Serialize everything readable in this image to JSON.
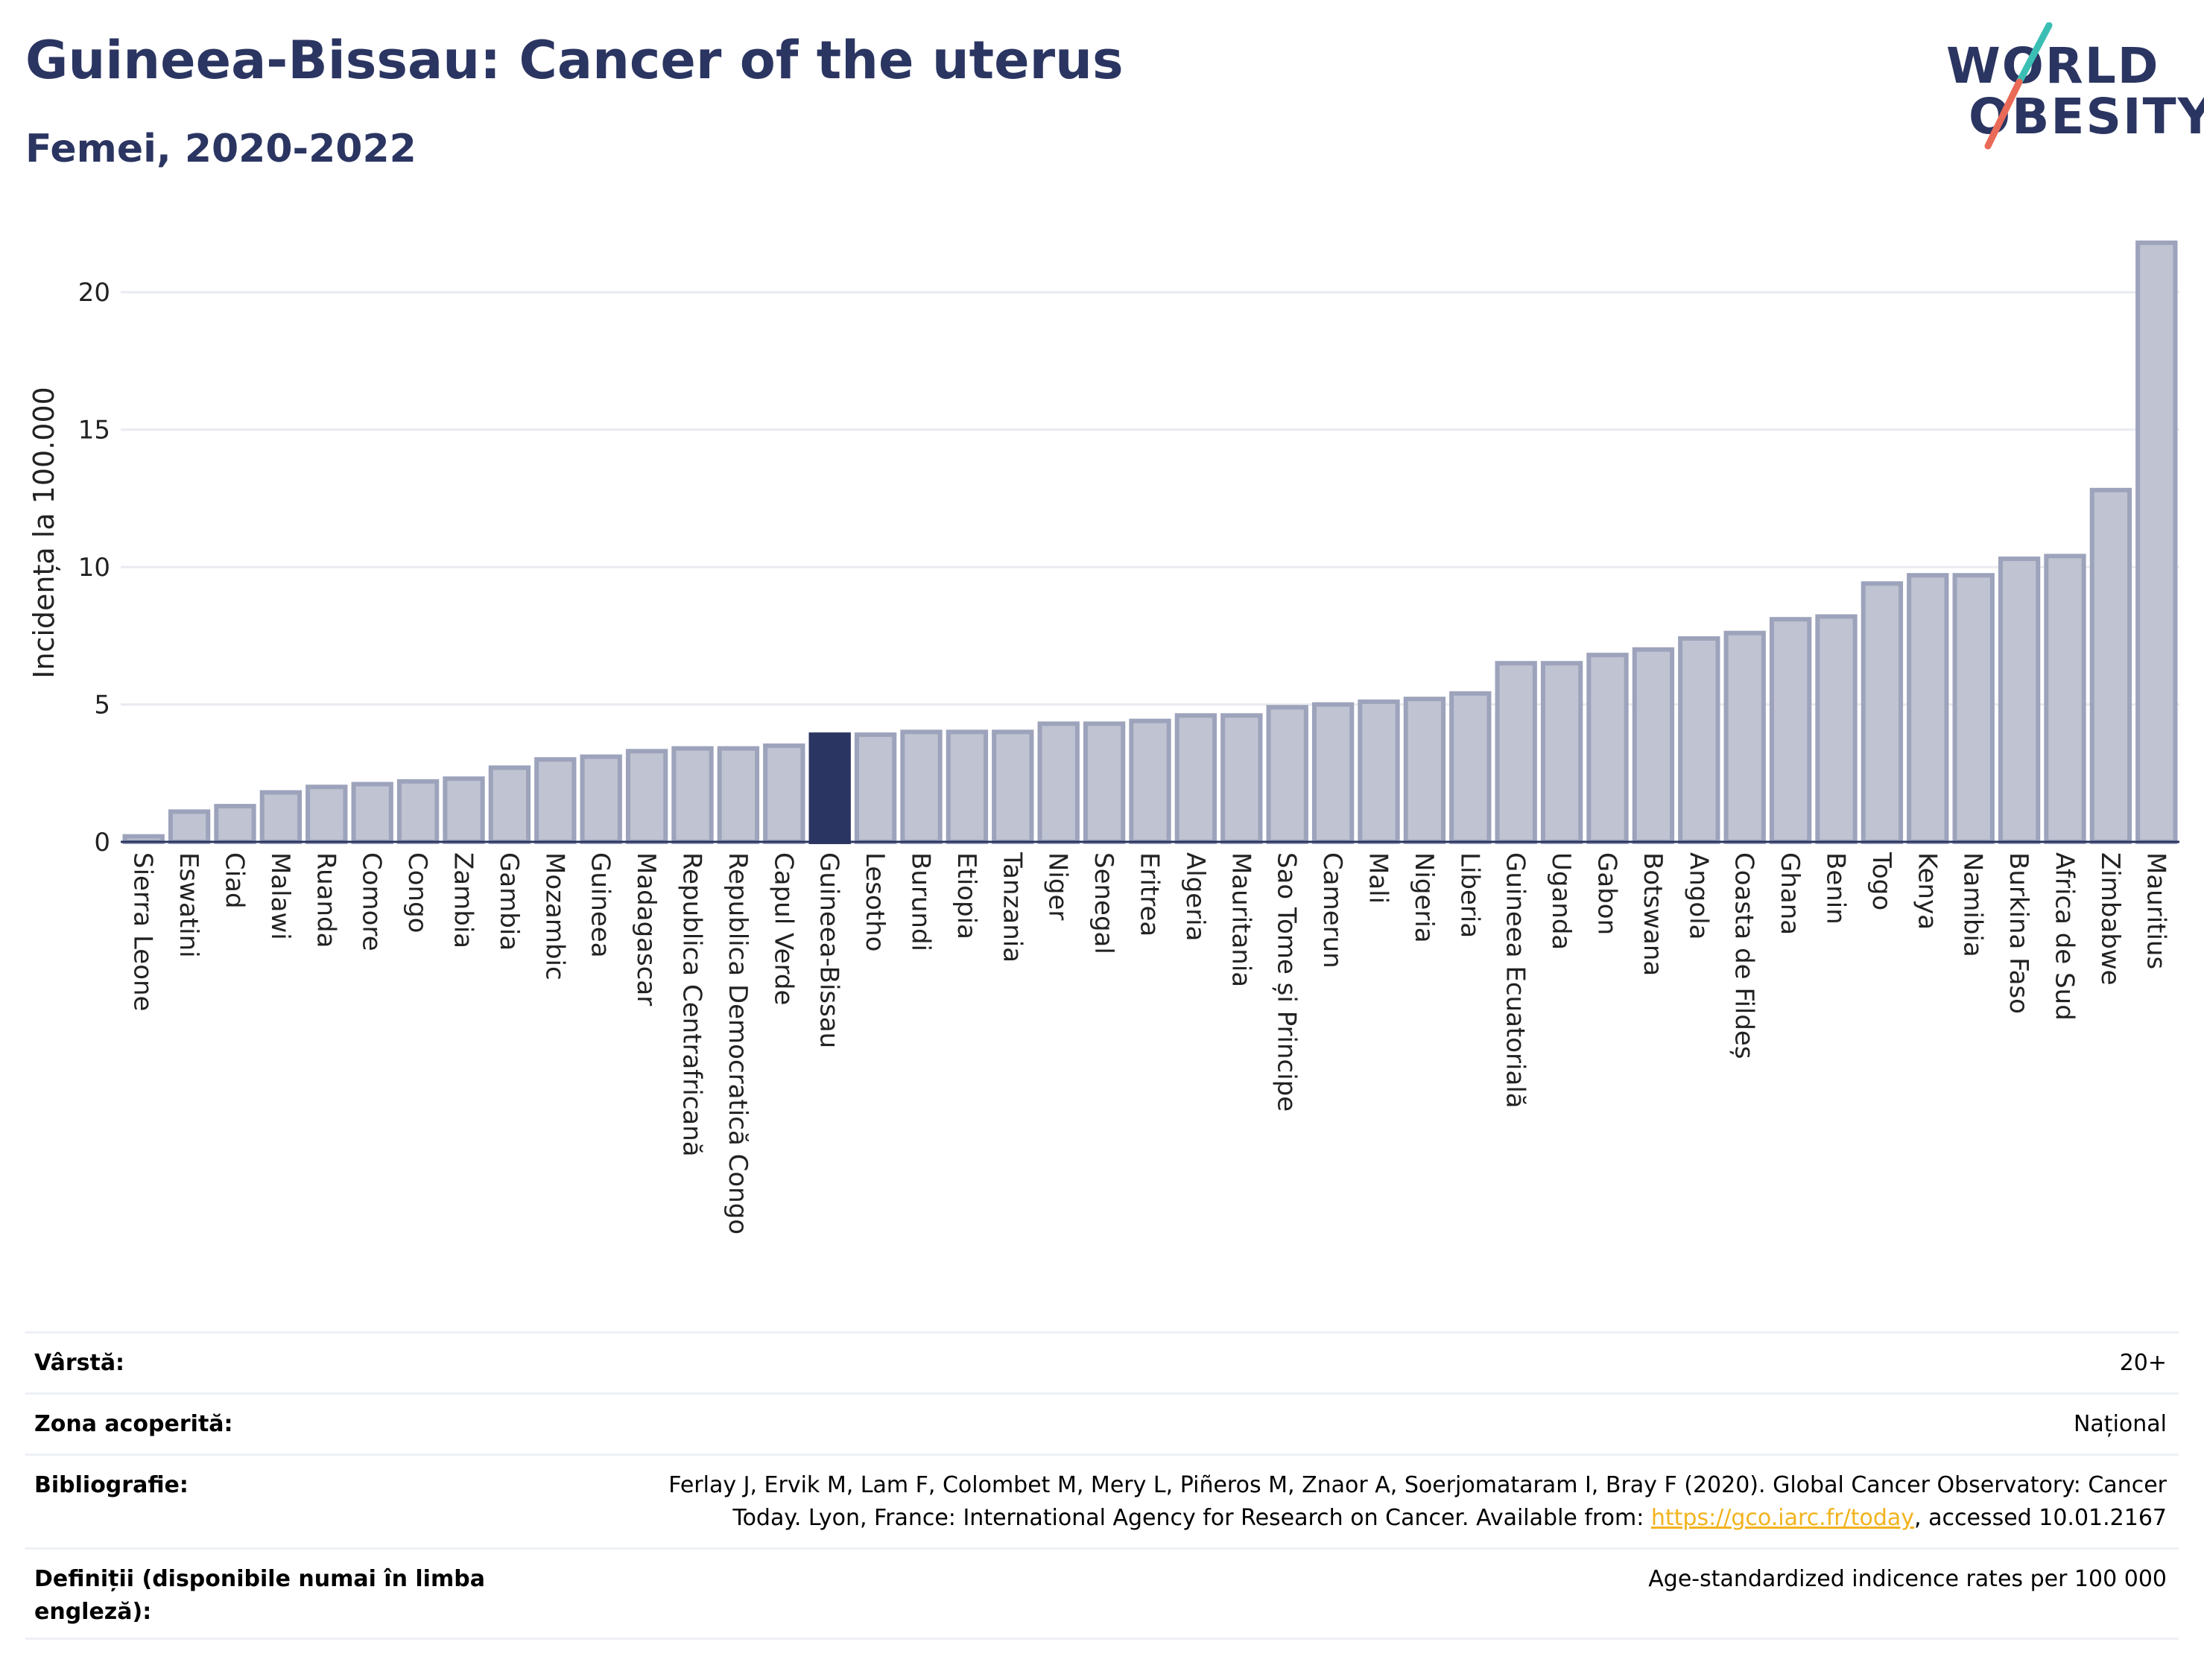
{
  "header": {
    "title": "Guineea-Bissau: Cancer of the uterus",
    "subtitle": "Femei, 2020-2022"
  },
  "logo": {
    "line1": "WORLD",
    "line2": "OBESITY",
    "colors": {
      "text": "#2b3561",
      "slash_top": "#3bbfb5",
      "slash_bottom": "#ea6a58"
    }
  },
  "colors": {
    "bar_fill": "#bfc3d2",
    "bar_stroke": "#9da3bb",
    "highlight_fill": "#2b3561",
    "axis_text": "#222222",
    "grid": "#e9ebf0"
  },
  "chart_data": {
    "type": "bar",
    "ylabel": "Incidența la 100.000",
    "ylim": [
      0,
      22.5
    ],
    "yticks": [
      0,
      5,
      10,
      15,
      20
    ],
    "grid": true,
    "highlight": "Guineea-Bissau",
    "categories": [
      "Sierra Leone",
      "Eswatini",
      "Ciad",
      "Malawi",
      "Ruanda",
      "Comore",
      "Congo",
      "Zambia",
      "Gambia",
      "Mozambic",
      "Guineea",
      "Madagascar",
      "Republica Centrafricană",
      "Republica Democratică Congo",
      "Capul Verde",
      "Guineea-Bissau",
      "Lesotho",
      "Burundi",
      "Etiopia",
      "Tanzania",
      "Niger",
      "Senegal",
      "Eritrea",
      "Algeria",
      "Mauritania",
      "Sao Tome și Principe",
      "Camerun",
      "Mali",
      "Nigeria",
      "Liberia",
      "Guineea Ecuatorială",
      "Uganda",
      "Gabon",
      "Botswana",
      "Angola",
      "Coasta de Fildeș",
      "Ghana",
      "Benin",
      "Togo",
      "Kenya",
      "Namibia",
      "Burkina Faso",
      "Africa de Sud",
      "Zimbabwe",
      "Mauritius"
    ],
    "values": [
      0.2,
      1.1,
      1.3,
      1.8,
      2.0,
      2.1,
      2.2,
      2.3,
      2.7,
      3.0,
      3.1,
      3.3,
      3.4,
      3.4,
      3.5,
      3.9,
      3.9,
      4.0,
      4.0,
      4.0,
      4.3,
      4.3,
      4.4,
      4.6,
      4.6,
      4.9,
      5.0,
      5.1,
      5.2,
      5.4,
      6.5,
      6.5,
      6.8,
      7.0,
      7.4,
      7.6,
      8.1,
      8.2,
      9.4,
      9.7,
      9.7,
      10.3,
      10.4,
      12.8,
      21.8
    ]
  },
  "info": [
    {
      "label": "Vârstă:",
      "value": "20+"
    },
    {
      "label": "Zona acoperită:",
      "value": "Național"
    },
    {
      "label": "Bibliografie:",
      "value_line1": "Ferlay J, Ervik M, Lam F, Colombet M, Mery L, Piñeros M, Znaor A, Soerjomataram I, Bray F (2020). Global Cancer Observatory: Cancer",
      "value_line2_pre": "Today. Lyon, France: International Agency for Research on Cancer. Available from: ",
      "value_link": "https://gco.iarc.fr/today",
      "value_line2_post": ", accessed 10.01.2167"
    },
    {
      "label_line1": "Definiții (disponibile numai în limba",
      "label_line2": "engleză):",
      "value": "Age-standardized indicence rates per 100 000"
    }
  ]
}
